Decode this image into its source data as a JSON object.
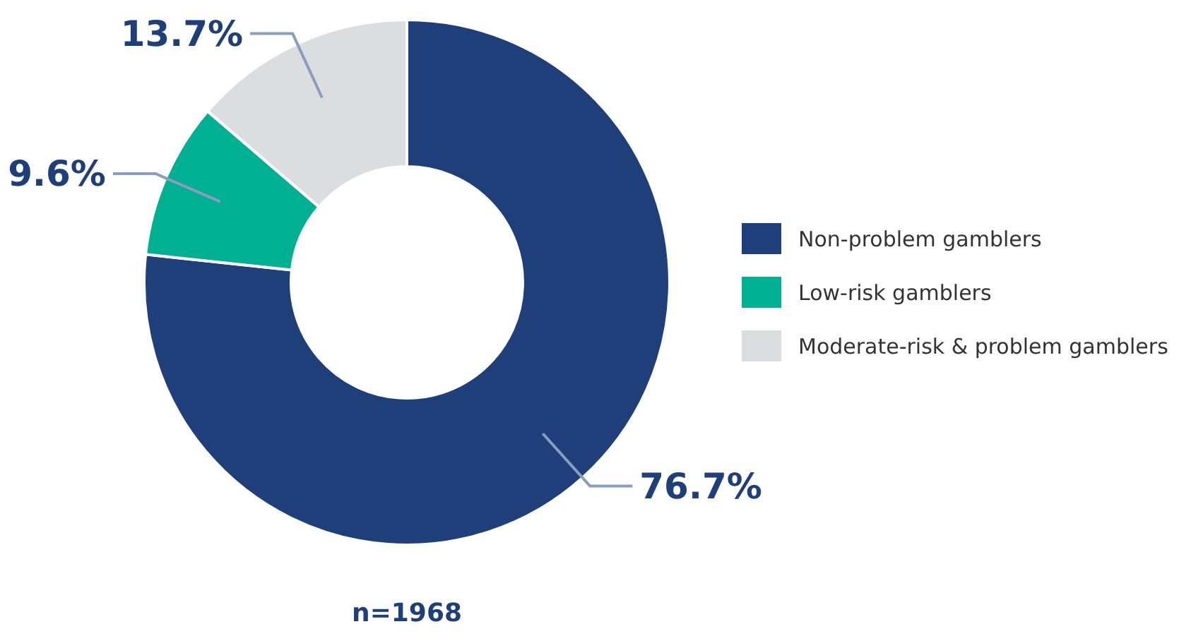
{
  "chart_data": {
    "type": "donut",
    "categories": [
      "Non-problem gamblers",
      "Low-risk gamblers",
      "Moderate-risk & problem gamblers"
    ],
    "values": [
      76.7,
      9.6,
      13.7
    ],
    "colors": [
      "#1f3f7a",
      "#00b092",
      "#dcdddf"
    ],
    "value_labels": [
      "76.7%",
      "9.6%",
      "13.7%"
    ],
    "legend": "right",
    "annotations": [
      "n=1968"
    ]
  }
}
